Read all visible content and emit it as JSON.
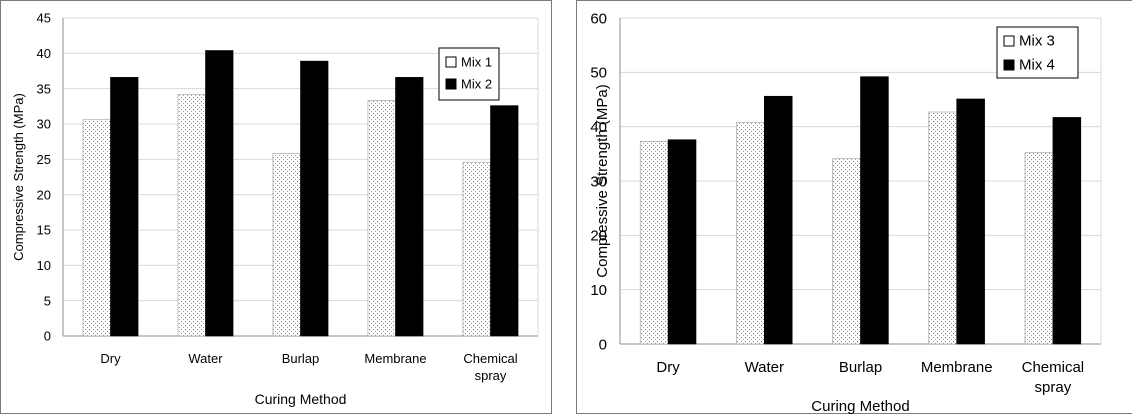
{
  "chart_data": [
    {
      "type": "bar",
      "categories": [
        "Dry",
        "Water",
        "Burlap",
        "Membrane",
        "Chemical spray"
      ],
      "category_lines": [
        [
          "Dry"
        ],
        [
          "Water"
        ],
        [
          "Burlap"
        ],
        [
          "Membrane"
        ],
        [
          "Chemical",
          "spray"
        ]
      ],
      "series": [
        {
          "name": "Mix 1",
          "values": [
            30.6,
            34.2,
            25.8,
            33.3,
            24.6
          ],
          "fill": "dotted"
        },
        {
          "name": "Mix 2",
          "values": [
            36.6,
            40.4,
            38.9,
            36.6,
            32.6
          ],
          "fill": "#000000"
        }
      ],
      "xlabel": "Curing Method",
      "ylabel": "Compressive Strength (MPa)",
      "ylim": [
        0,
        45
      ],
      "yticks": [
        0,
        5,
        10,
        15,
        20,
        25,
        30,
        35,
        40,
        45
      ],
      "grid": true,
      "legend": "top-right"
    },
    {
      "type": "bar",
      "categories": [
        "Dry",
        "Water",
        "Burlap",
        "Membrane",
        "Chemical spray"
      ],
      "category_lines": [
        [
          "Dry"
        ],
        [
          "Water"
        ],
        [
          "Burlap"
        ],
        [
          "Membrane"
        ],
        [
          "Chemical",
          "spray"
        ]
      ],
      "series": [
        {
          "name": "Mix 3",
          "values": [
            37.3,
            40.8,
            34.1,
            42.7,
            35.2
          ],
          "fill": "dotted"
        },
        {
          "name": "Mix 4",
          "values": [
            37.6,
            45.6,
            49.2,
            45.1,
            41.7
          ],
          "fill": "#000000"
        }
      ],
      "xlabel": "Curing Method",
      "ylabel": "Compressive Strength (MPa)",
      "ylim": [
        0,
        60
      ],
      "yticks": [
        0,
        10,
        20,
        30,
        40,
        50,
        60
      ],
      "grid": true,
      "legend": "top-right"
    }
  ]
}
